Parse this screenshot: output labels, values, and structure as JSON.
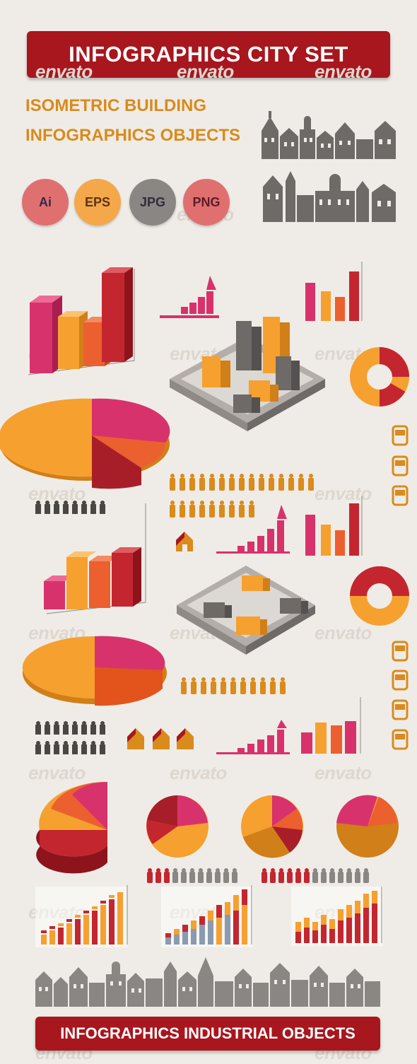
{
  "header": {
    "title": "INFOGRAPHICS  CITY  SET"
  },
  "subtitle": {
    "line1": "ISOMETRIC BUILDING",
    "line2": "INFOGRAPHICS  OBJECTS"
  },
  "formats": [
    {
      "label": "Ai",
      "bg": "#e07070",
      "fg": "#33294a"
    },
    {
      "label": "EPS",
      "bg": "#f4a84a",
      "fg": "#5a3518"
    },
    {
      "label": "JPG",
      "bg": "#8a8684",
      "fg": "#2f2d3c"
    },
    {
      "label": "PNG",
      "bg": "#e07070",
      "fg": "#5a1e28"
    }
  ],
  "footer": {
    "title": "INFOGRAPHICS INDUSTRIAL OBJECTS"
  },
  "watermark": "envato",
  "colors": {
    "red": "#c4262f",
    "magenta": "#d8326c",
    "orange": "#f6a030",
    "tomato": "#ec5f2f",
    "gray": "#6e6a67",
    "banner": "#a8161e",
    "accent": "#d98b1c"
  }
}
